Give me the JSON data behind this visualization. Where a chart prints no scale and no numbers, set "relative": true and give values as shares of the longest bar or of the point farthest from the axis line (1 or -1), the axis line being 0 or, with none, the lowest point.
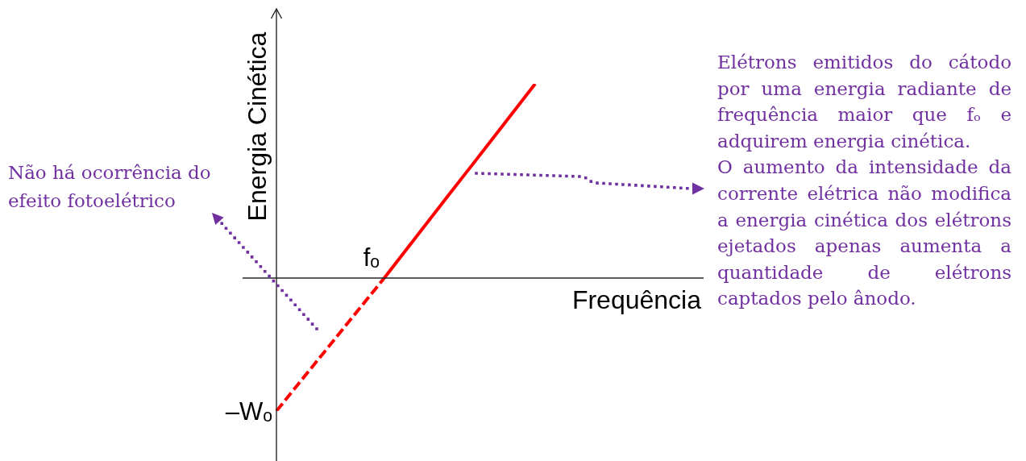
{
  "chart_data": {
    "type": "line",
    "relative": true,
    "xlabel": "Frequência",
    "ylabel": "Energia Cinética",
    "categories": [
      null,
      null,
      null,
      null,
      null,
      null,
      null,
      null,
      null,
      null,
      null,
      null,
      null
    ],
    "series": [
      {
        "color": "#ff0000",
        "values": [
          -0.685,
          -0.548,
          -0.411,
          -0.274,
          -0.137,
          0,
          null,
          null,
          null,
          null,
          null,
          null,
          null
        ],
        "line_style": "dashed"
      },
      {
        "color": "#ff0000",
        "values": [
          null,
          null,
          null,
          null,
          null,
          0,
          0.143,
          0.286,
          0.429,
          0.571,
          0.714,
          0.857,
          1
        ],
        "line_style": "solid"
      }
    ],
    "annotations": [
      "fₒ",
      "–Wₒ",
      "Não há ocorrência do efeito fotoelétrico",
      "Elétrons emitidos do cátodo por uma energia radiante de frequência maior que fₒ e adquirem energia cinética.",
      "O aumento da intensidade da corrente elétrica não modifica a energia cinética dos elétrons ejetados apenas aumenta a quantidade de elétrons captados pelo ânodo."
    ]
  }
}
